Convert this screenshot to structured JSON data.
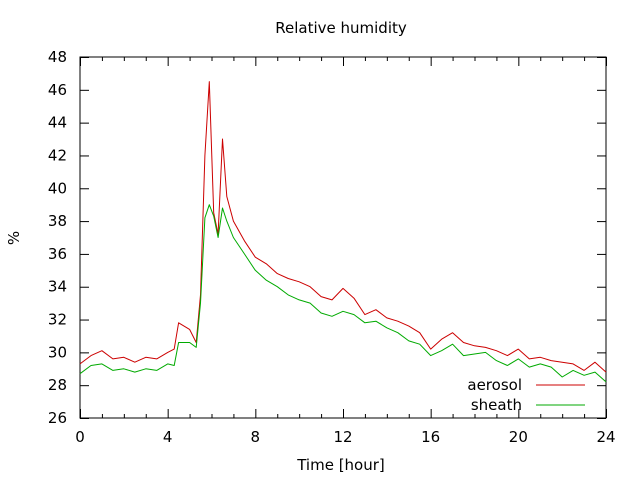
{
  "chart_data": {
    "type": "line",
    "title": "Relative humidity",
    "xlabel": "Time [hour]",
    "ylabel": "%",
    "xlim": [
      0,
      24
    ],
    "ylim": [
      26,
      48
    ],
    "x_ticks": [
      0,
      4,
      8,
      12,
      16,
      20,
      24
    ],
    "x_tick_labels": [
      "0",
      "4",
      "8",
      "12",
      "16",
      "20",
      "24"
    ],
    "y_ticks": [
      26,
      28,
      30,
      32,
      34,
      36,
      38,
      40,
      42,
      44,
      46,
      48
    ],
    "y_tick_labels": [
      "26",
      "28",
      "30",
      "32",
      "34",
      "36",
      "38",
      "40",
      "42",
      "44",
      "46",
      "48"
    ],
    "grid": false,
    "legend_position": "bottom-right",
    "series": [
      {
        "name": "aerosol",
        "color": "#cc0000",
        "x": [
          0,
          0.5,
          1,
          1.5,
          2,
          2.5,
          3,
          3.5,
          4,
          4.3,
          4.5,
          5,
          5.3,
          5.5,
          5.7,
          5.9,
          6.1,
          6.3,
          6.5,
          6.7,
          7,
          7.5,
          8,
          8.5,
          9,
          9.5,
          10,
          10.5,
          11,
          11.5,
          12,
          12.5,
          13,
          13.5,
          14,
          14.5,
          15,
          15.5,
          16,
          16.5,
          17,
          17.5,
          18,
          18.5,
          19,
          19.5,
          20,
          20.5,
          21,
          21.5,
          22,
          22.5,
          23,
          23.5,
          24
        ],
        "y": [
          29.3,
          29.8,
          30.1,
          29.6,
          29.7,
          29.4,
          29.7,
          29.6,
          30.0,
          30.2,
          31.8,
          31.4,
          30.6,
          33.5,
          42.0,
          46.5,
          38.5,
          37.2,
          43.0,
          39.5,
          38.0,
          36.8,
          35.8,
          35.4,
          34.8,
          34.5,
          34.3,
          34.0,
          33.4,
          33.2,
          33.9,
          33.3,
          32.3,
          32.6,
          32.1,
          31.9,
          31.6,
          31.2,
          30.2,
          30.8,
          31.2,
          30.6,
          30.4,
          30.3,
          30.1,
          29.8,
          30.2,
          29.6,
          29.7,
          29.5,
          29.4,
          29.3,
          28.9,
          29.4,
          28.8
        ]
      },
      {
        "name": "sheath",
        "color": "#00aa00",
        "x": [
          0,
          0.5,
          1,
          1.5,
          2,
          2.5,
          3,
          3.5,
          4,
          4.3,
          4.5,
          5,
          5.3,
          5.5,
          5.7,
          5.9,
          6.1,
          6.3,
          6.5,
          6.7,
          7,
          7.5,
          8,
          8.5,
          9,
          9.5,
          10,
          10.5,
          11,
          11.5,
          12,
          12.5,
          13,
          13.5,
          14,
          14.5,
          15,
          15.5,
          16,
          16.5,
          17,
          17.5,
          18,
          18.5,
          19,
          19.5,
          20,
          20.5,
          21,
          21.5,
          22,
          22.5,
          23,
          23.5,
          24
        ],
        "y": [
          28.7,
          29.2,
          29.3,
          28.9,
          29.0,
          28.8,
          29.0,
          28.9,
          29.3,
          29.2,
          30.6,
          30.6,
          30.3,
          33.0,
          38.2,
          39.0,
          38.3,
          37.0,
          38.8,
          38.0,
          37.0,
          36.0,
          35.0,
          34.4,
          34.0,
          33.5,
          33.2,
          33.0,
          32.4,
          32.2,
          32.5,
          32.3,
          31.8,
          31.9,
          31.5,
          31.2,
          30.7,
          30.5,
          29.8,
          30.1,
          30.5,
          29.8,
          29.9,
          30.0,
          29.5,
          29.2,
          29.6,
          29.1,
          29.3,
          29.1,
          28.5,
          28.9,
          28.6,
          28.8,
          28.2
        ]
      }
    ]
  }
}
